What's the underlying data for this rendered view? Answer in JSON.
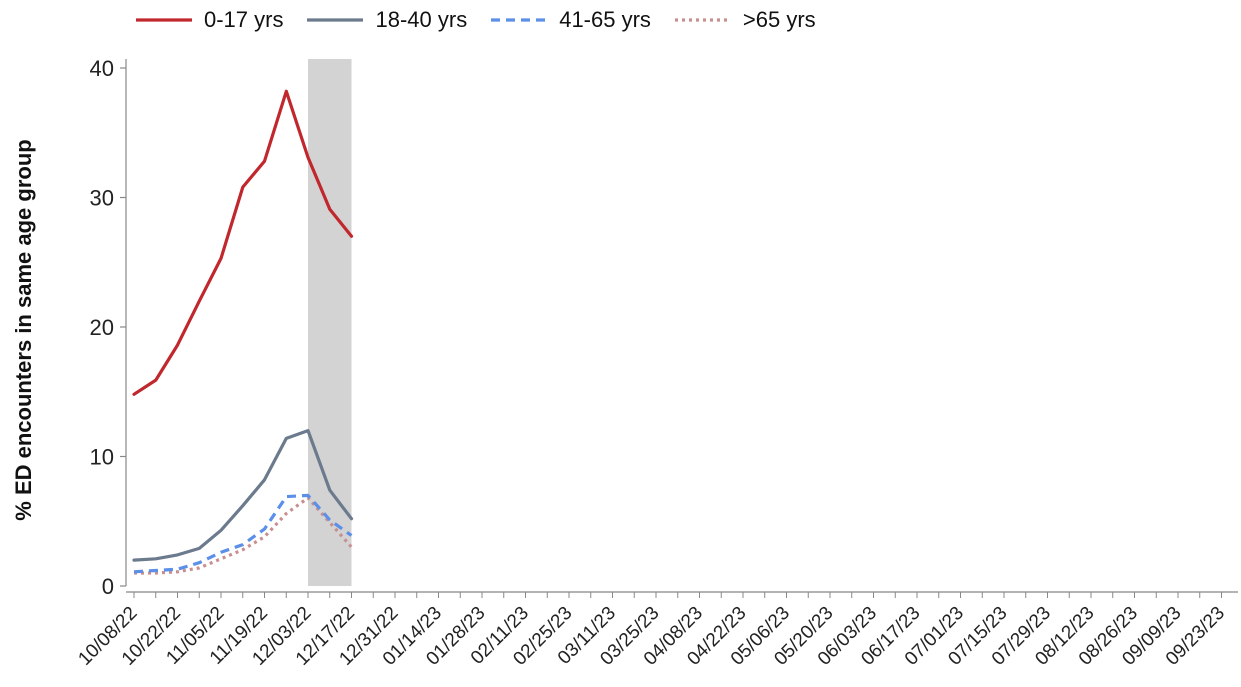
{
  "chart_data": {
    "type": "line",
    "title": "",
    "xlabel": "",
    "ylabel": "% ED encounters in same age group",
    "ylim": [
      0,
      40
    ],
    "yticks": [
      0,
      10,
      20,
      30,
      40
    ],
    "grid": false,
    "legend_position": "top",
    "x_tick_labels": [
      "10/08/22",
      "10/22/22",
      "11/05/22",
      "11/19/22",
      "12/03/22",
      "12/17/22",
      "12/31/22",
      "01/14/23",
      "01/28/23",
      "02/11/23",
      "02/25/23",
      "03/11/23",
      "03/25/23",
      "04/08/23",
      "04/22/23",
      "05/06/23",
      "05/20/23",
      "06/03/23",
      "06/17/23",
      "07/01/23",
      "07/15/23",
      "07/29/23",
      "08/12/23",
      "08/26/23",
      "09/09/23",
      "09/23/23"
    ],
    "x": [
      "10/08/22",
      "10/15/22",
      "10/22/22",
      "10/29/22",
      "11/05/22",
      "11/12/22",
      "11/19/22",
      "11/26/22",
      "12/03/22",
      "12/10/22",
      "12/17/22"
    ],
    "shaded_region": {
      "start": "12/03/22",
      "end": "12/17/22",
      "color": "#d3d3d3"
    },
    "series": [
      {
        "name": "0-17 yrs",
        "color": "#c0282d",
        "dash": "solid",
        "values": [
          14.8,
          15.9,
          18.6,
          22.0,
          25.3,
          30.8,
          32.8,
          38.2,
          33.1,
          29.1,
          27.0
        ]
      },
      {
        "name": "18-40 yrs",
        "color": "#6b7a8c",
        "dash": "solid",
        "values": [
          2.0,
          2.1,
          2.4,
          2.9,
          4.3,
          6.2,
          8.2,
          11.4,
          12.0,
          7.4,
          5.2
        ]
      },
      {
        "name": "41-65 yrs",
        "color": "#5b8fe8",
        "dash": "dashed",
        "values": [
          1.1,
          1.2,
          1.3,
          1.8,
          2.6,
          3.2,
          4.4,
          6.9,
          7.0,
          5.1,
          3.9
        ]
      },
      {
        "name": ">65 yrs",
        "color": "#c98f8f",
        "dash": "dotted",
        "values": [
          1.0,
          1.0,
          1.1,
          1.4,
          2.1,
          2.8,
          3.8,
          5.6,
          6.8,
          4.9,
          3.0
        ]
      }
    ]
  }
}
